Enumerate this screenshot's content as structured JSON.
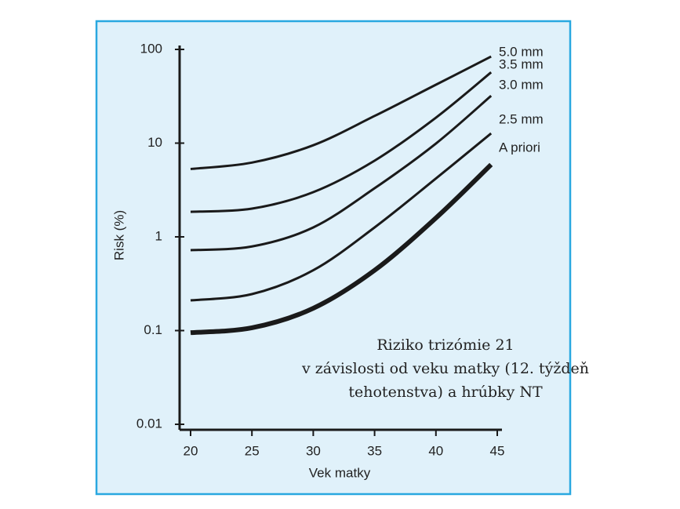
{
  "chart_data": {
    "type": "line",
    "y_label": "Risk (%)",
    "x_label": "Vek matky",
    "annotation": [
      "Riziko trizómie 21",
      "v závislosti od veku matky (12. týždeň",
      "tehotenstva) a hrúbky NT"
    ],
    "x": [
      20,
      25,
      30,
      35,
      40,
      44.5
    ],
    "series": [
      {
        "name": "5.0 mm",
        "color": "#1a1a1a",
        "line_width": 3,
        "values": [
          5.3,
          6.2,
          9.5,
          19.5,
          42,
          84
        ]
      },
      {
        "name": "3.5 mm",
        "color": "#1a1a1a",
        "line_width": 3,
        "values": [
          1.85,
          2.0,
          3.0,
          6.5,
          18.7,
          57
        ]
      },
      {
        "name": "3.0 mm",
        "color": "#1a1a1a",
        "line_width": 3,
        "values": [
          0.72,
          0.79,
          1.26,
          3.3,
          9.9,
          32
        ]
      },
      {
        "name": "2.5 mm",
        "color": "#1a1a1a",
        "line_width": 3,
        "values": [
          0.21,
          0.245,
          0.44,
          1.26,
          4.2,
          12.7
        ]
      },
      {
        "name": "A priori",
        "color": "#1a1a1a",
        "line_width": 6,
        "values": [
          0.095,
          0.107,
          0.173,
          0.44,
          1.59,
          5.9
        ]
      }
    ],
    "xlim": [
      20,
      45
    ],
    "xticks": [
      20,
      25,
      30,
      35,
      40,
      45
    ],
    "ylim": [
      0.01,
      100
    ],
    "yticks": [
      0.01,
      0.1,
      1,
      10,
      100
    ],
    "log_y": true,
    "grid": false
  }
}
